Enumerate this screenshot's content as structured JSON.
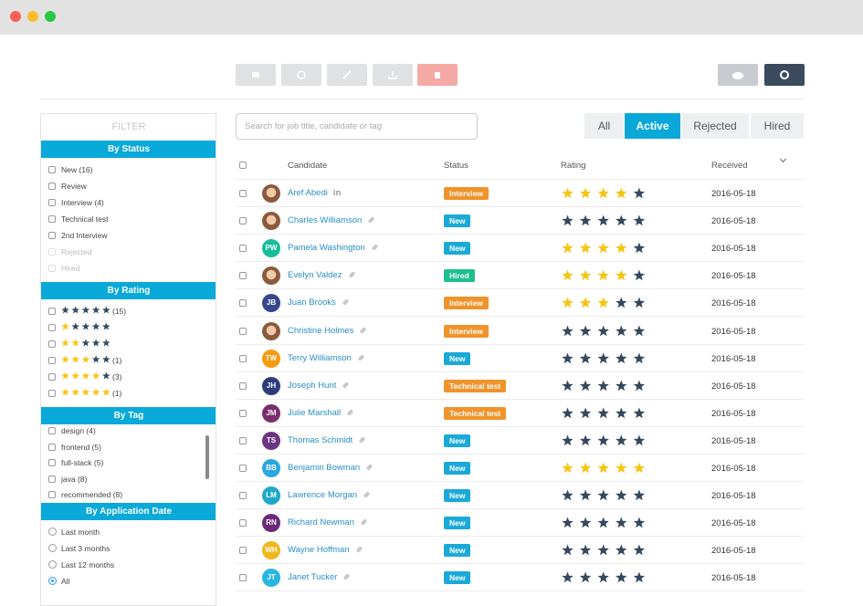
{
  "filter": {
    "title": "FILTER",
    "status": {
      "title": "By Status",
      "options": [
        {
          "label": "New (16)"
        },
        {
          "label": "Review"
        },
        {
          "label": "Interview (4)"
        },
        {
          "label": "Technical test"
        },
        {
          "label": "2nd Interview"
        },
        {
          "label": "Rejected",
          "disabled": true
        },
        {
          "label": "Hired",
          "disabled": true
        }
      ]
    },
    "rating": {
      "title": "By Rating",
      "options": [
        {
          "filled": 0,
          "count": "(15)"
        },
        {
          "filled": 1
        },
        {
          "filled": 2
        },
        {
          "filled": 3,
          "count": "(1)"
        },
        {
          "filled": 4,
          "count": "(3)"
        },
        {
          "filled": 5,
          "count": "(1)"
        }
      ]
    },
    "tag": {
      "title": "By Tag",
      "options": [
        {
          "label": "design (4)"
        },
        {
          "label": "frontend (5)"
        },
        {
          "label": "full-stack (5)"
        },
        {
          "label": "java (8)"
        },
        {
          "label": "recommended (8)"
        }
      ]
    },
    "date": {
      "title": "By Application Date",
      "options": [
        {
          "label": "Last month"
        },
        {
          "label": "Last 3 months"
        },
        {
          "label": "Last 12 months"
        },
        {
          "label": "All",
          "selected": true
        }
      ]
    }
  },
  "search": {
    "placeholder": "Search for job title, candidate or tag"
  },
  "tabs": {
    "items": [
      "All",
      "Active",
      "Rejected",
      "Hired"
    ],
    "active": 1
  },
  "table": {
    "columns": [
      "Candidate",
      "Status",
      "Rating",
      "Received"
    ],
    "rows": [
      {
        "name": "Aref Abedi",
        "badge": "in",
        "status": "Interview",
        "status_color": "#f0932b",
        "rating": 4,
        "received": "2016-05-18"
      },
      {
        "name": "Charles Williamson",
        "status": "New",
        "status_color": "#1aa9d8",
        "rating": 0,
        "received": "2016-05-18"
      },
      {
        "name": "Pamela Washington",
        "initials": "PW",
        "avatar_color": "#1abc9c",
        "status": "New",
        "status_color": "#1aa9d8",
        "rating": 4,
        "received": "2016-05-18"
      },
      {
        "name": "Evelyn Valdez",
        "status": "Hired",
        "status_color": "#1fbf8f",
        "rating": 4,
        "received": "2016-05-18"
      },
      {
        "name": "Juan Brooks",
        "initials": "JB",
        "avatar_color": "#34498a",
        "status": "Interview",
        "status_color": "#f0932b",
        "rating": 3,
        "received": "2016-05-18"
      },
      {
        "name": "Christine Holmes",
        "status": "Interview",
        "status_color": "#f0932b",
        "rating": 0,
        "received": "2016-05-18"
      },
      {
        "name": "Terry Williamson",
        "initials": "TW",
        "avatar_color": "#f39c12",
        "status": "New",
        "status_color": "#1aa9d8",
        "rating": 0,
        "received": "2016-05-18"
      },
      {
        "name": "Joseph Hunt",
        "initials": "JH",
        "avatar_color": "#2c3e7a",
        "status": "Technical test",
        "status_color": "#f0932b",
        "rating": 0,
        "received": "2016-05-18"
      },
      {
        "name": "Julie Marshall",
        "initials": "JM",
        "avatar_color": "#7b2d6e",
        "status": "Technical test",
        "status_color": "#f0932b",
        "rating": 0,
        "received": "2016-05-18"
      },
      {
        "name": "Thomas Schmidt",
        "initials": "TS",
        "avatar_color": "#6c3483",
        "status": "New",
        "status_color": "#1aa9d8",
        "rating": 0,
        "received": "2016-05-18"
      },
      {
        "name": "Benjamin Bowman",
        "initials": "BB",
        "avatar_color": "#2aa7e0",
        "status": "New",
        "status_color": "#1aa9d8",
        "rating": 5,
        "received": "2016-05-18"
      },
      {
        "name": "Lawrence Morgan",
        "initials": "LM",
        "avatar_color": "#1fa9c8",
        "status": "New",
        "status_color": "#1aa9d8",
        "rating": 0,
        "received": "2016-05-18"
      },
      {
        "name": "Richard Newman",
        "initials": "RN",
        "avatar_color": "#6a2a7a",
        "status": "New",
        "status_color": "#1aa9d8",
        "rating": 0,
        "received": "2016-05-18"
      },
      {
        "name": "Wayne Hoffman",
        "initials": "WH",
        "avatar_color": "#f1b71c",
        "status": "New",
        "status_color": "#1aa9d8",
        "rating": 0,
        "received": "2016-05-18"
      },
      {
        "name": "Janet Tucker",
        "initials": "JT",
        "avatar_color": "#29b6e0",
        "status": "New",
        "status_color": "#1aa9d8",
        "rating": 0,
        "received": "2016-05-18"
      }
    ]
  }
}
